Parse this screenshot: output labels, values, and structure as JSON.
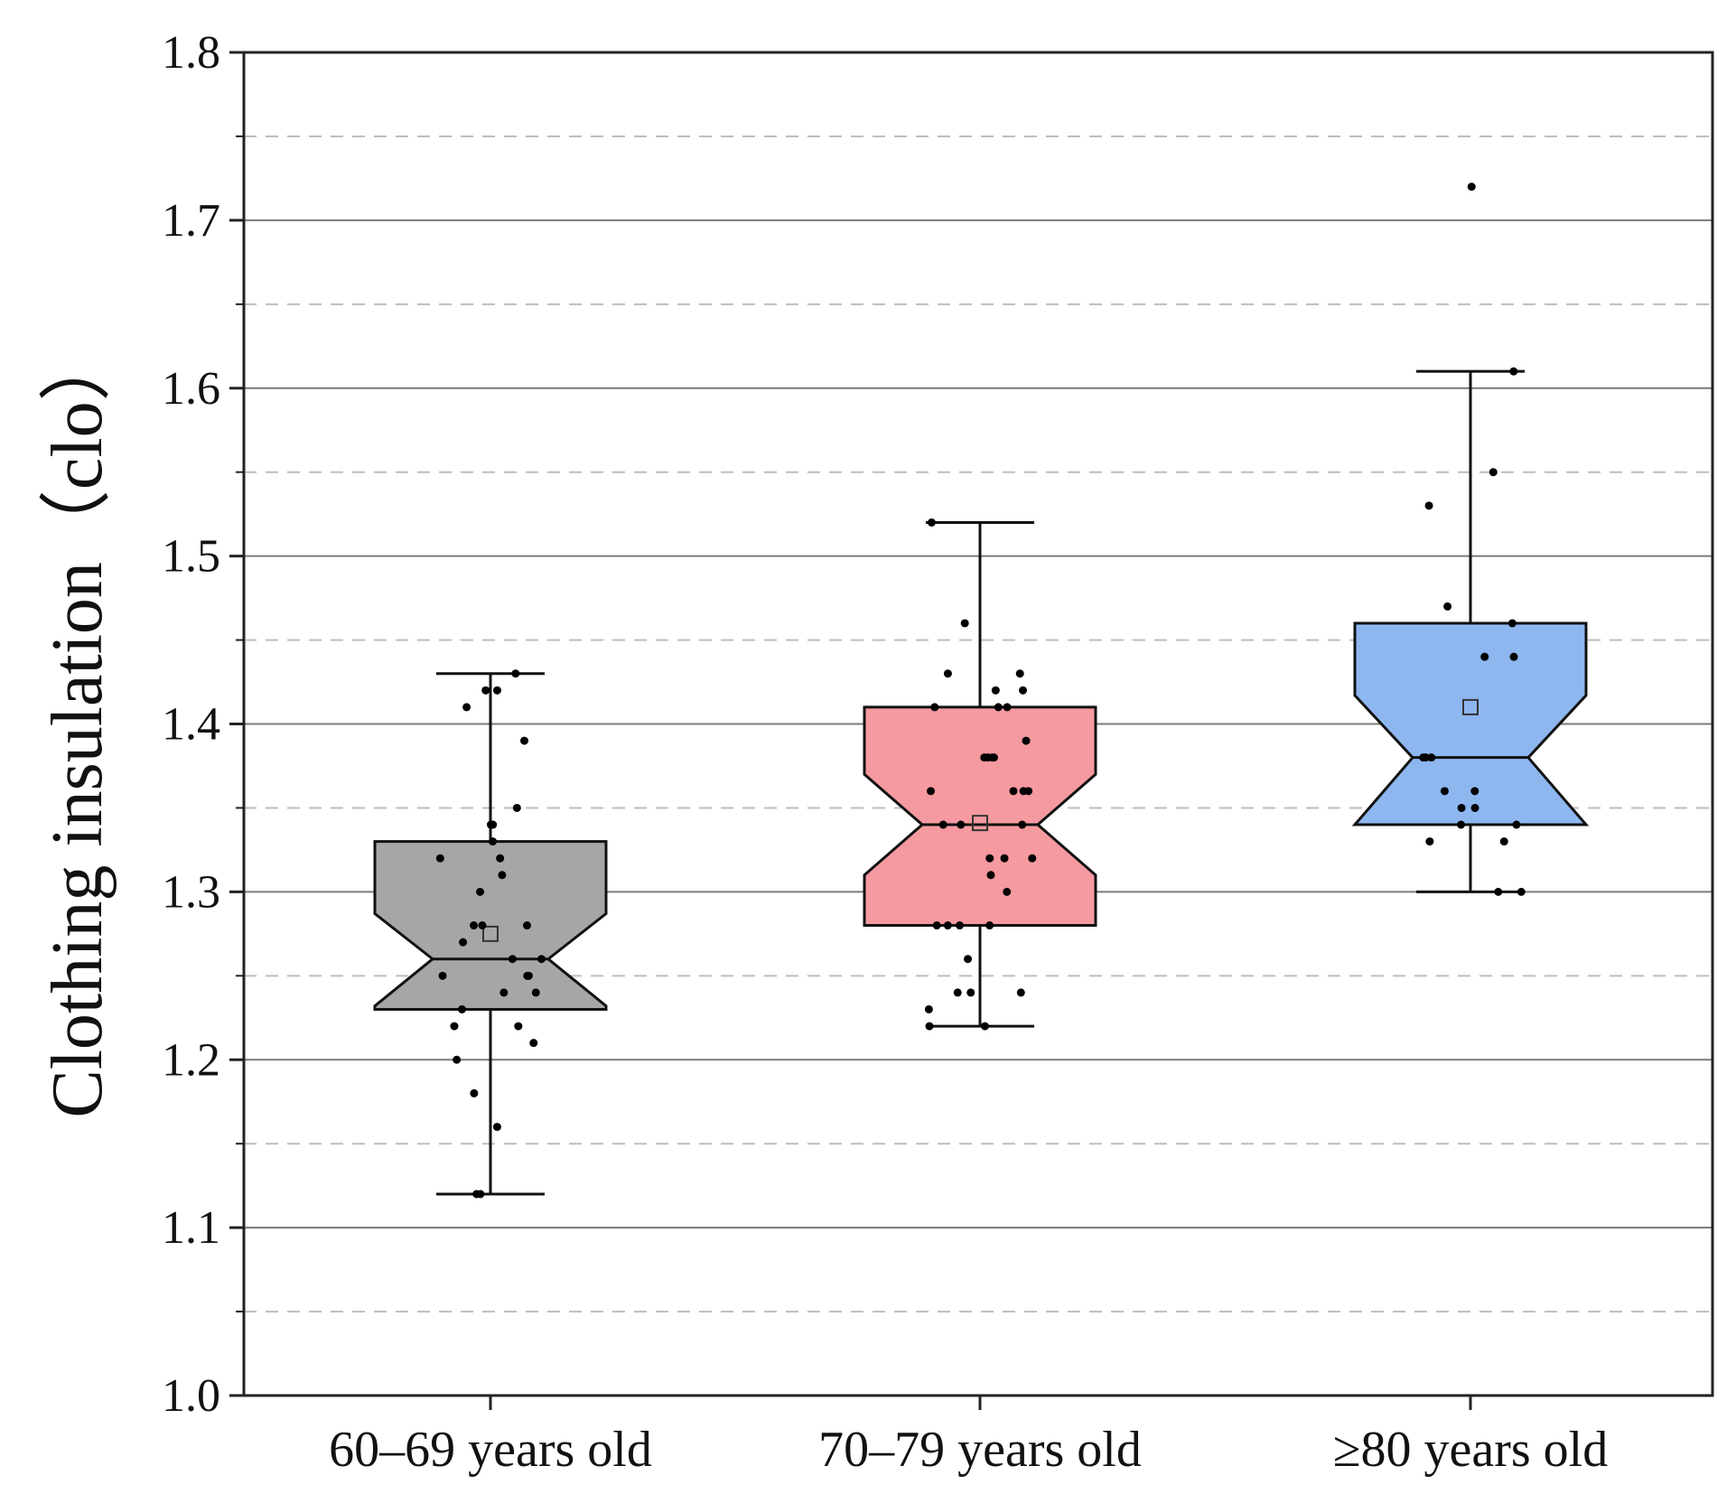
{
  "chart_data": {
    "type": "box",
    "title": "",
    "xlabel": "",
    "ylabel": "Clothing insulation（clo）",
    "ylim": [
      1.0,
      1.8
    ],
    "major_ticks": [
      "1.0",
      "1.1",
      "1.2",
      "1.3",
      "1.4",
      "1.5",
      "1.6",
      "1.7",
      "1.8"
    ],
    "grid": {
      "major": "solid",
      "minor": "dashed"
    },
    "categories": [
      "60–69 years old",
      "70–79 years old",
      "≥80 years old"
    ],
    "series": [
      {
        "name": "60–69 years old",
        "color": "#a6a6a6",
        "whisker_low": 1.12,
        "q1": 1.23,
        "median": 1.26,
        "q3": 1.33,
        "whisker_high": 1.43,
        "notch_low": 1.232,
        "notch_high": 1.287,
        "mean": 1.275,
        "points": [
          1.43,
          1.42,
          1.42,
          1.41,
          1.39,
          1.35,
          1.34,
          1.34,
          1.33,
          1.32,
          1.32,
          1.31,
          1.3,
          1.28,
          1.28,
          1.28,
          1.27,
          1.26,
          1.26,
          1.25,
          1.25,
          1.25,
          1.24,
          1.24,
          1.23,
          1.22,
          1.22,
          1.21,
          1.2,
          1.18,
          1.16,
          1.12,
          1.12
        ]
      },
      {
        "name": "70–79 years old",
        "color": "#f59aa0",
        "whisker_low": 1.22,
        "q1": 1.28,
        "median": 1.34,
        "q3": 1.41,
        "whisker_high": 1.52,
        "notch_low": 1.31,
        "notch_high": 1.37,
        "mean": 1.341,
        "points": [
          1.52,
          1.46,
          1.43,
          1.43,
          1.42,
          1.42,
          1.41,
          1.41,
          1.41,
          1.39,
          1.38,
          1.38,
          1.38,
          1.38,
          1.36,
          1.36,
          1.36,
          1.36,
          1.34,
          1.34,
          1.34,
          1.32,
          1.32,
          1.32,
          1.31,
          1.3,
          1.28,
          1.28,
          1.28,
          1.28,
          1.26,
          1.24,
          1.24,
          1.24,
          1.23,
          1.22,
          1.22
        ]
      },
      {
        "name": "≥80 years old",
        "color": "#8eb7f0",
        "whisker_low": 1.3,
        "q1": 1.34,
        "median": 1.38,
        "q3": 1.46,
        "whisker_high": 1.61,
        "notch_low": 1.34,
        "notch_high": 1.417,
        "mean": 1.41,
        "points": [
          1.72,
          1.61,
          1.55,
          1.53,
          1.47,
          1.46,
          1.44,
          1.44,
          1.38,
          1.38,
          1.38,
          1.38,
          1.36,
          1.36,
          1.35,
          1.35,
          1.34,
          1.34,
          1.33,
          1.33,
          1.3,
          1.3
        ]
      }
    ]
  }
}
